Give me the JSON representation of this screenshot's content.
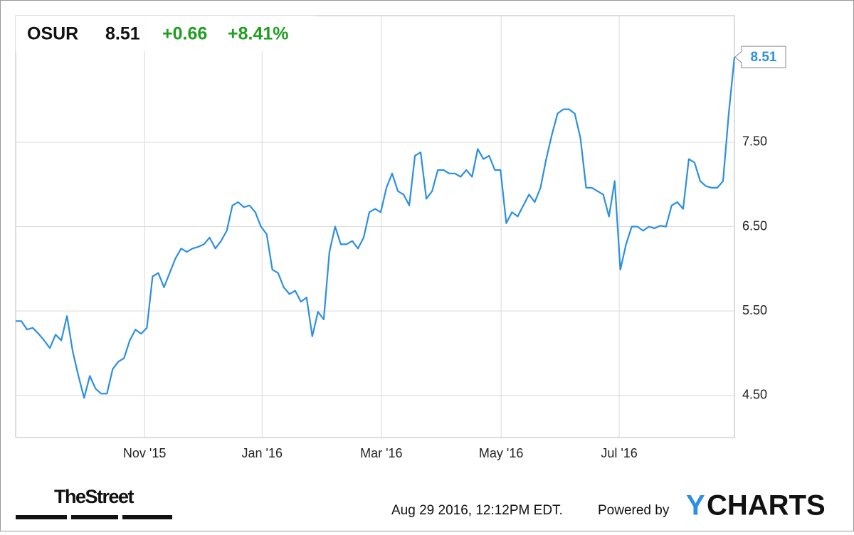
{
  "chart_data": {
    "type": "line",
    "ticker": "OSUR",
    "price": "8.51",
    "change": "+0.66",
    "change_pct": "+8.41%",
    "color": "#2b8fe3",
    "change_color": "#1f9e1f",
    "values": [
      5.38,
      5.38,
      5.28,
      5.3,
      5.23,
      5.15,
      5.06,
      5.22,
      5.15,
      5.44,
      5.02,
      4.73,
      4.47,
      4.73,
      4.58,
      4.52,
      4.52,
      4.81,
      4.9,
      4.94,
      5.15,
      5.28,
      5.23,
      5.3,
      5.91,
      5.95,
      5.78,
      5.95,
      6.12,
      6.24,
      6.2,
      6.24,
      6.26,
      6.29,
      6.37,
      6.24,
      6.33,
      6.45,
      6.75,
      6.79,
      6.73,
      6.75,
      6.67,
      6.5,
      6.41,
      5.99,
      5.95,
      5.78,
      5.7,
      5.74,
      5.61,
      5.66,
      5.2,
      5.49,
      5.4,
      6.2,
      6.5,
      6.29,
      6.29,
      6.33,
      6.24,
      6.37,
      6.67,
      6.71,
      6.67,
      6.96,
      7.13,
      6.92,
      6.88,
      6.75,
      7.34,
      7.38,
      6.83,
      6.92,
      7.17,
      7.17,
      7.13,
      7.13,
      7.09,
      7.17,
      7.09,
      7.42,
      7.3,
      7.34,
      7.17,
      7.17,
      6.54,
      6.67,
      6.62,
      6.75,
      6.88,
      6.79,
      6.96,
      7.3,
      7.59,
      7.84,
      7.89,
      7.89,
      7.84,
      7.55,
      6.96,
      6.96,
      6.92,
      6.88,
      6.62,
      7.04,
      5.99,
      6.29,
      6.5,
      6.5,
      6.45,
      6.5,
      6.48,
      6.51,
      6.5,
      6.75,
      6.79,
      6.71,
      7.3,
      7.26,
      7.04,
      6.98,
      6.96,
      6.96,
      7.04,
      7.84,
      8.51
    ],
    "xlim": [
      0,
      126
    ],
    "xticks": [
      {
        "value": 22.6,
        "label": "Nov '15"
      },
      {
        "value": 43.2,
        "label": "Jan '16"
      },
      {
        "value": 64.1,
        "label": "Mar '16"
      },
      {
        "value": 85.1,
        "label": "May '16"
      },
      {
        "value": 105.8,
        "label": "Jul '16"
      }
    ],
    "ylim": [
      4.0,
      9.0
    ],
    "yticks": [
      {
        "value": 4.5,
        "label": "4.50"
      },
      {
        "value": 5.5,
        "label": "5.50"
      },
      {
        "value": 6.5,
        "label": "6.50"
      },
      {
        "value": 7.5,
        "label": "7.50"
      }
    ],
    "grid": true
  },
  "footer": {
    "source": "TheStreet",
    "timestamp": "Aug 29 2016, 12:12PM EDT.",
    "powered": "Powered by",
    "logo_y": "Y",
    "logo_rest": "CHARTS"
  }
}
